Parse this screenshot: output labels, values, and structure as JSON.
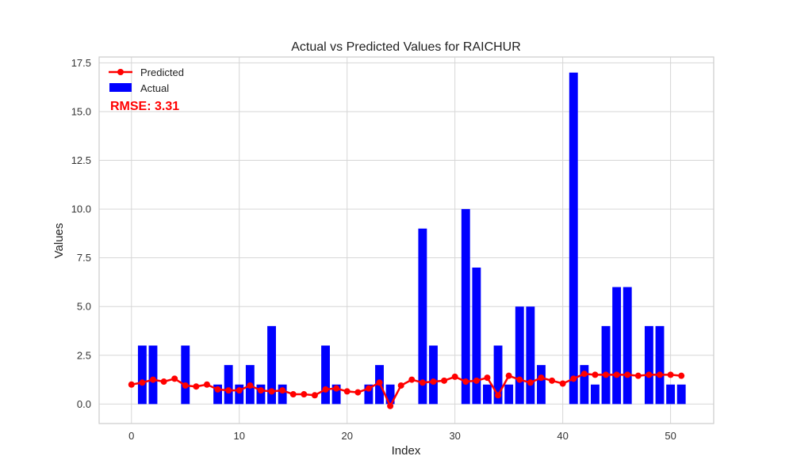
{
  "chart_data": {
    "type": "bar",
    "title": "Actual vs Predicted Values for RAICHUR",
    "xlabel": "Index",
    "ylabel": "Values",
    "xlim": [
      -3,
      54
    ],
    "ylim": [
      -1,
      17.8
    ],
    "xticks": [
      0,
      10,
      20,
      30,
      40,
      50
    ],
    "yticks": [
      0.0,
      2.5,
      5.0,
      7.5,
      10.0,
      12.5,
      15.0,
      17.5
    ],
    "ytick_labels": [
      "0.0",
      "2.5",
      "5.0",
      "7.5",
      "10.0",
      "12.5",
      "15.0",
      "17.5"
    ],
    "grid": true,
    "legend_position": "top-left",
    "annotation": "RMSE: 3.31",
    "annotation_color": "#ff0000",
    "x": [
      0,
      1,
      2,
      3,
      4,
      5,
      6,
      7,
      8,
      9,
      10,
      11,
      12,
      13,
      14,
      15,
      16,
      17,
      18,
      19,
      20,
      21,
      22,
      23,
      24,
      25,
      26,
      27,
      28,
      29,
      30,
      31,
      32,
      33,
      34,
      35,
      36,
      37,
      38,
      39,
      40,
      41,
      42,
      43,
      44,
      45,
      46,
      47,
      48,
      49,
      50,
      51
    ],
    "series": [
      {
        "name": "Predicted",
        "kind": "line",
        "color": "#ff0000",
        "values": [
          1.0,
          1.1,
          1.25,
          1.15,
          1.3,
          0.95,
          0.9,
          1.0,
          0.75,
          0.7,
          0.7,
          0.95,
          0.7,
          0.65,
          0.7,
          0.5,
          0.5,
          0.45,
          0.75,
          0.8,
          0.65,
          0.6,
          0.8,
          1.1,
          -0.1,
          0.95,
          1.25,
          1.1,
          1.15,
          1.2,
          1.4,
          1.15,
          1.2,
          1.35,
          0.45,
          1.45,
          1.25,
          1.1,
          1.35,
          1.2,
          1.05,
          1.3,
          1.55,
          1.5,
          1.5,
          1.5,
          1.5,
          1.45,
          1.5,
          1.5,
          1.5,
          1.45
        ]
      },
      {
        "name": "Actual",
        "kind": "bar",
        "color": "#0000ff",
        "values": [
          0,
          3,
          3,
          0,
          0,
          3,
          0,
          0,
          1,
          2,
          1,
          2,
          1,
          4,
          1,
          0,
          0,
          0,
          3,
          1,
          0,
          0,
          1,
          2,
          1,
          0,
          0,
          9,
          3,
          0,
          0,
          10,
          7,
          1,
          3,
          1,
          5,
          5,
          2,
          0,
          0,
          17,
          2,
          1,
          4,
          6,
          6,
          0,
          4,
          4,
          1,
          1
        ]
      }
    ]
  }
}
